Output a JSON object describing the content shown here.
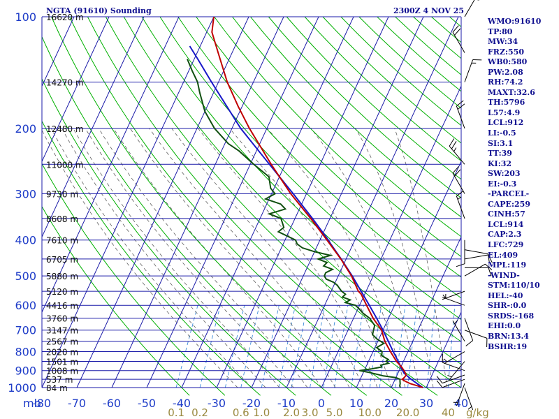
{
  "header": {
    "station": "NGTA (91610) Sounding",
    "datetime": "2300Z  4 NOV 25"
  },
  "indices": [
    "WMO:91610",
    "TP:80",
    "MW:34",
    "FRZ:550",
    "WB0:580",
    "PW:2.08",
    "RH:74.2",
    "MAXT:32.6",
    "TH:5796",
    "L57:4.9",
    "LCL:912",
    "LI:-0.5",
    "SI:3.1",
    "TT:39",
    "KI:32",
    "SW:203",
    "EI:-0.3",
    "-PARCEL-",
    "CAPE:259",
    "CINH:57",
    "LCL:914",
    "CAP:2.3",
    "LFC:729",
    "EL:409",
    "MPL:119",
    "-WIND-",
    "STM:110/10",
    "HEL:-40",
    "SHR-:0.0",
    "SRDS:-168",
    "EHI:0.0",
    "BRN:13.4",
    "BSHR:19"
  ],
  "colors": {
    "isobar": "#1a1aa8",
    "isotherm": "#1a1aa8",
    "dry_adiabat": "#00b000",
    "moist_adiabat": "#606060",
    "mixing_ratio": "#3a8ad8",
    "temperature": "#c00000",
    "dewpoint": "#105010",
    "parcel": "#1818c8",
    "axis_label": "#1e3cc8",
    "mixing_label": "#9a8a40",
    "title": "#101090"
  },
  "chart_data": {
    "type": "skew-t",
    "title": "NGTA (91610) Sounding",
    "valid_time": "2300Z  4 NOV 25",
    "pressure_axis_label": "mb",
    "pressure_range_mb": [
      1000,
      100
    ],
    "pressure_ticks": [
      {
        "p": 100,
        "label": "100"
      },
      {
        "p": 200,
        "label": "200"
      },
      {
        "p": 300,
        "label": "300"
      },
      {
        "p": 400,
        "label": "400"
      },
      {
        "p": 500,
        "label": "500"
      },
      {
        "p": 600,
        "label": "600"
      },
      {
        "p": 700,
        "label": "700"
      },
      {
        "p": 800,
        "label": "800"
      },
      {
        "p": 900,
        "label": "900"
      },
      {
        "p": 1000,
        "label": "1000"
      }
    ],
    "extra_isobars_mb": [
      150,
      250,
      350,
      450,
      550,
      650,
      750,
      850,
      950
    ],
    "temperature_ticks_c": [
      -80,
      -70,
      -60,
      -50,
      -40,
      -30,
      -20,
      -10,
      0,
      10,
      20,
      30,
      40
    ],
    "temperature_tick_labels": [
      "-80",
      "-70",
      "-60",
      "-50",
      "-40",
      "-30",
      "-20",
      "-10",
      "0",
      "10",
      "20",
      "30",
      "40"
    ],
    "height_labels": [
      {
        "p": 100,
        "label": "16620 m"
      },
      {
        "p": 150,
        "label": "14270 m"
      },
      {
        "p": 200,
        "label": "12480 m"
      },
      {
        "p": 250,
        "label": "11000 m"
      },
      {
        "p": 300,
        "label": "9730 m"
      },
      {
        "p": 350,
        "label": "8608 m"
      },
      {
        "p": 400,
        "label": "7610 m"
      },
      {
        "p": 450,
        "label": "6705 m"
      },
      {
        "p": 500,
        "label": "5880 m"
      },
      {
        "p": 550,
        "label": "5120 m"
      },
      {
        "p": 600,
        "label": "4416 m"
      },
      {
        "p": 650,
        "label": "3760 m"
      },
      {
        "p": 700,
        "label": "3147 m"
      },
      {
        "p": 750,
        "label": "2567 m"
      },
      {
        "p": 800,
        "label": "2020 m"
      },
      {
        "p": 850,
        "label": "1501 m"
      },
      {
        "p": 900,
        "label": "1008 m"
      },
      {
        "p": 950,
        "label": "537 m"
      },
      {
        "p": 1000,
        "label": "84 m"
      }
    ],
    "mixing_ratio_lines_gkg": [
      {
        "w": 0.1,
        "label": "0.1"
      },
      {
        "w": 0.2,
        "label": "0.2"
      },
      {
        "w": 0.6,
        "label": "0.6"
      },
      {
        "w": 1.0,
        "label": "1.0"
      },
      {
        "w": 2.0,
        "label": "2.0"
      },
      {
        "w": 3.0,
        "label": "3.0"
      },
      {
        "w": 5.0,
        "label": "5.0"
      },
      {
        "w": 10.0,
        "label": "10.0"
      },
      {
        "w": 20.0,
        "label": "20.0"
      },
      {
        "w": 40.0,
        "label": "40"
      }
    ],
    "mixing_ratio_unit": "g/kg",
    "temperature_profile": [
      [
        1000,
        29.0
      ],
      [
        990,
        27.4
      ],
      [
        975,
        24.8
      ],
      [
        960,
        23.0
      ],
      [
        950,
        22.0
      ],
      [
        940,
        22.4
      ],
      [
        925,
        22.6
      ],
      [
        900,
        21.4
      ],
      [
        880,
        20.2
      ],
      [
        850,
        18.0
      ],
      [
        800,
        15.0
      ],
      [
        750,
        12.0
      ],
      [
        700,
        9.6
      ],
      [
        650,
        5.6
      ],
      [
        600,
        2.0
      ],
      [
        560,
        -1.0
      ],
      [
        550,
        -2.2
      ],
      [
        500,
        -6.2
      ],
      [
        450,
        -11.5
      ],
      [
        400,
        -18.0
      ],
      [
        350,
        -25.5
      ],
      [
        300,
        -34.5
      ],
      [
        250,
        -44.0
      ],
      [
        200,
        -55.0
      ],
      [
        175,
        -61.0
      ],
      [
        150,
        -67.5
      ],
      [
        125,
        -74.0
      ],
      [
        110,
        -78.5
      ],
      [
        100,
        -80.0
      ]
    ],
    "dewpoint_profile": [
      [
        1000,
        22.6
      ],
      [
        990,
        22.2
      ],
      [
        975,
        22.0
      ],
      [
        960,
        21.6
      ],
      [
        950,
        21.4
      ],
      [
        940,
        20.0
      ],
      [
        930,
        16.2
      ],
      [
        920,
        14.0
      ],
      [
        910,
        11.6
      ],
      [
        900,
        8.6
      ],
      [
        890,
        12.0
      ],
      [
        880,
        14.5
      ],
      [
        870,
        14.0
      ],
      [
        860,
        16.0
      ],
      [
        850,
        15.0
      ],
      [
        840,
        15.4
      ],
      [
        820,
        13.0
      ],
      [
        800,
        12.6
      ],
      [
        780,
        10.5
      ],
      [
        760,
        12.0
      ],
      [
        740,
        9.5
      ],
      [
        720,
        7.6
      ],
      [
        700,
        7.3
      ],
      [
        680,
        7.0
      ],
      [
        650,
        4.6
      ],
      [
        630,
        2.0
      ],
      [
        610,
        0.0
      ],
      [
        600,
        -1.2
      ],
      [
        590,
        -4.4
      ],
      [
        580,
        -3.4
      ],
      [
        570,
        -6.0
      ],
      [
        560,
        -5.5
      ],
      [
        550,
        -7.0
      ],
      [
        540,
        -8.0
      ],
      [
        530,
        -9.0
      ],
      [
        520,
        -10.5
      ],
      [
        510,
        -13.0
      ],
      [
        500,
        -14.0
      ],
      [
        490,
        -14.0
      ],
      [
        480,
        -12.5
      ],
      [
        470,
        -15.5
      ],
      [
        460,
        -15.0
      ],
      [
        450,
        -18.0
      ],
      [
        440,
        -15.0
      ],
      [
        430,
        -20.0
      ],
      [
        420,
        -24.0
      ],
      [
        410,
        -26.0
      ],
      [
        400,
        -27.0
      ],
      [
        380,
        -33.0
      ],
      [
        370,
        -32.0
      ],
      [
        350,
        -34.0
      ],
      [
        340,
        -38.0
      ],
      [
        330,
        -34.0
      ],
      [
        320,
        -36.0
      ],
      [
        310,
        -41.0
      ],
      [
        300,
        -39.0
      ],
      [
        290,
        -41.0
      ],
      [
        270,
        -43.0
      ],
      [
        250,
        -49.0
      ],
      [
        230,
        -55.0
      ],
      [
        220,
        -59.0
      ],
      [
        200,
        -65.0
      ],
      [
        180,
        -70.0
      ],
      [
        160,
        -74.0
      ],
      [
        150,
        -76.0
      ],
      [
        140,
        -79.0
      ],
      [
        130,
        -82.0
      ]
    ],
    "parcel_profile": [
      [
        1000,
        29.0
      ],
      [
        950,
        24.6
      ],
      [
        914,
        21.7
      ],
      [
        900,
        21.0
      ],
      [
        850,
        18.5
      ],
      [
        800,
        15.8
      ],
      [
        750,
        13.0
      ],
      [
        700,
        10.0
      ],
      [
        650,
        6.6
      ],
      [
        600,
        2.8
      ],
      [
        550,
        -1.4
      ],
      [
        500,
        -6.0
      ],
      [
        450,
        -11.4
      ],
      [
        409,
        -16.5
      ],
      [
        400,
        -17.6
      ],
      [
        350,
        -25.0
      ],
      [
        300,
        -33.8
      ],
      [
        250,
        -44.5
      ],
      [
        200,
        -57.5
      ],
      [
        150,
        -72.0
      ],
      [
        130,
        -79.0
      ],
      [
        120,
        -83.0
      ]
    ],
    "wind_profile": [
      {
        "p": 1000,
        "dir": 160,
        "spd": 5
      },
      {
        "p": 975,
        "dir": 200,
        "spd": 5
      },
      {
        "p": 950,
        "dir": 250,
        "spd": 10
      },
      {
        "p": 925,
        "dir": 250,
        "spd": 10
      },
      {
        "p": 900,
        "dir": 290,
        "spd": 10
      },
      {
        "p": 850,
        "dir": 220,
        "spd": 5
      },
      {
        "p": 800,
        "dir": 240,
        "spd": 5
      },
      {
        "p": 750,
        "dir": 330,
        "spd": 5
      },
      {
        "p": 700,
        "dir": 110,
        "spd": 10
      },
      {
        "p": 650,
        "dir": 160,
        "spd": 10
      },
      {
        "p": 600,
        "dir": 290,
        "spd": 5
      },
      {
        "p": 550,
        "dir": 250,
        "spd": 5
      },
      {
        "p": 500,
        "dir": 60,
        "spd": 10
      },
      {
        "p": 475,
        "dir": 90,
        "spd": 10
      },
      {
        "p": 450,
        "dir": 80,
        "spd": 10
      },
      {
        "p": 425,
        "dir": 100,
        "spd": 10
      },
      {
        "p": 400,
        "dir": 180,
        "spd": 10
      },
      {
        "p": 350,
        "dir": 340,
        "spd": 15
      },
      {
        "p": 300,
        "dir": 330,
        "spd": 20
      },
      {
        "p": 250,
        "dir": 320,
        "spd": 25
      },
      {
        "p": 200,
        "dir": 340,
        "spd": 20
      },
      {
        "p": 150,
        "dir": 20,
        "spd": 15
      },
      {
        "p": 125,
        "dir": 330,
        "spd": 20
      },
      {
        "p": 100,
        "dir": 30,
        "spd": 15
      }
    ]
  }
}
